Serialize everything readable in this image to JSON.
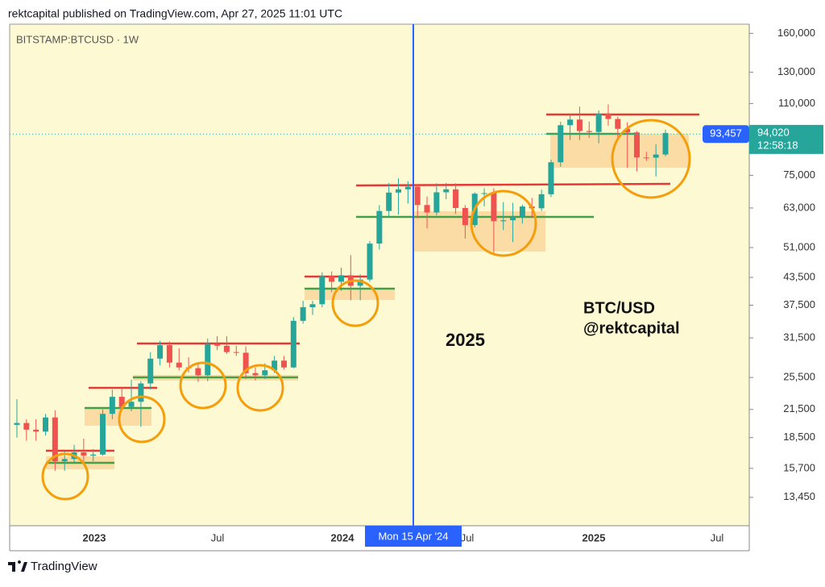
{
  "header": "rektcapital published on TradingView.com, Apr 27, 2025 11:01 UTC",
  "footer": "TradingView",
  "chart_data": {
    "type": "candlestick",
    "title": "BITSTAMP:BTCUSD · 1W",
    "annotations": [
      "2025",
      "BTC/USD",
      "@rektcapital"
    ],
    "crosshair_label": "Mon 15 Apr '24",
    "log_scale": true,
    "up_color": "#26a69a",
    "down_color": "#ef5350",
    "ylim": [
      11560,
      168000
    ],
    "yticks": [
      {
        "value": 160000,
        "label": "160,000"
      },
      {
        "value": 130000,
        "label": "130,000"
      },
      {
        "value": 110000,
        "label": "110,000"
      },
      {
        "value": 75000,
        "label": "75,000"
      },
      {
        "value": 63000,
        "label": "63,000"
      },
      {
        "value": 51000,
        "label": "51,000"
      },
      {
        "value": 43500,
        "label": "43,500"
      },
      {
        "value": 37500,
        "label": "37,500"
      },
      {
        "value": 31500,
        "label": "31,500"
      },
      {
        "value": 25500,
        "label": "25,500"
      },
      {
        "value": 21500,
        "label": "21,500"
      },
      {
        "value": 18500,
        "label": "18,500"
      },
      {
        "value": 15700,
        "label": "15,700"
      },
      {
        "value": 13450,
        "label": "13,450"
      }
    ],
    "xlabels": [
      "2023",
      "Jul",
      "2024",
      "Jul",
      "2025",
      "Jul"
    ],
    "price_line": {
      "value": 93457,
      "label": "93,457"
    },
    "last_price": {
      "value": 94020,
      "label": "94,020"
    },
    "countdown": "12:58:18",
    "open": [
      19800,
      20000,
      19300,
      19100,
      20600,
      16300,
      16500,
      17100,
      16800,
      16900,
      21000,
      23000,
      21800,
      22400,
      24700,
      28200,
      30300,
      27600,
      26900,
      26800,
      25800,
      30500,
      30200,
      29200,
      29100,
      26100,
      25800,
      26500,
      27900,
      26900,
      34500,
      37100,
      37700,
      43800,
      42500,
      44000,
      41600,
      43000,
      52100,
      62000,
      68400,
      69600,
      70600,
      64000,
      61500,
      68500,
      69600,
      63000,
      57500,
      68000,
      68200,
      58700,
      59000,
      60000,
      63500,
      62900,
      67800,
      80400,
      98000,
      101000,
      95000,
      94500,
      104300,
      101300,
      96100,
      94300,
      82500,
      82400,
      83800
    ],
    "high": [
      22700,
      20400,
      20400,
      21000,
      21400,
      17200,
      17800,
      18400,
      17400,
      21500,
      23900,
      24200,
      25200,
      25000,
      29200,
      31000,
      30900,
      29800,
      28400,
      27500,
      31400,
      31800,
      31800,
      30200,
      30100,
      26900,
      27500,
      28600,
      28600,
      35200,
      38400,
      38400,
      44700,
      44900,
      45800,
      49000,
      44200,
      52800,
      64000,
      72000,
      73800,
      72700,
      71300,
      67000,
      71900,
      72000,
      71900,
      64000,
      68500,
      70000,
      70000,
      65000,
      64800,
      64100,
      66500,
      69500,
      81500,
      99800,
      104100,
      108200,
      99900,
      106000,
      109500,
      102500,
      99500,
      95000,
      85000,
      88500,
      95700
    ],
    "low": [
      18500,
      18200,
      18200,
      18700,
      15500,
      15500,
      16200,
      16300,
      16300,
      16800,
      20400,
      21400,
      21300,
      19600,
      23900,
      27200,
      26900,
      26500,
      26200,
      24900,
      25000,
      29500,
      28900,
      28600,
      25300,
      25100,
      25300,
      26100,
      26600,
      26800,
      34000,
      35600,
      37100,
      40200,
      40500,
      38500,
      38500,
      42500,
      50500,
      60000,
      60800,
      64500,
      59600,
      56500,
      60600,
      66000,
      61000,
      53500,
      56800,
      63500,
      49000,
      56000,
      52500,
      58000,
      60000,
      62000,
      66800,
      78500,
      90500,
      90500,
      91500,
      89000,
      97700,
      91300,
      78000,
      76600,
      81000,
      74500,
      83000
    ],
    "close": [
      20000,
      19300,
      19100,
      20600,
      16300,
      16500,
      17100,
      16800,
      16900,
      21000,
      23000,
      21800,
      22400,
      24700,
      28200,
      30300,
      27600,
      26900,
      26800,
      25800,
      30500,
      30200,
      29200,
      29100,
      26100,
      25800,
      26500,
      27900,
      26900,
      34500,
      37100,
      37700,
      43800,
      42500,
      44000,
      41600,
      43000,
      52100,
      62000,
      68400,
      69600,
      70600,
      64000,
      61500,
      68500,
      69600,
      63000,
      57500,
      68000,
      68200,
      58700,
      59000,
      60000,
      63500,
      62900,
      67800,
      80400,
      98000,
      101000,
      95000,
      94500,
      104300,
      101300,
      96100,
      94300,
      82500,
      82400,
      83800,
      94020
    ]
  }
}
